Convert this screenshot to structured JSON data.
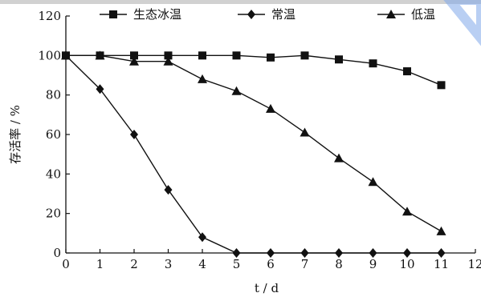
{
  "chart_data": {
    "type": "line",
    "xlabel": "t / d",
    "ylabel": "存活率 / %",
    "xlim": [
      0,
      12
    ],
    "ylim": [
      0,
      120
    ],
    "x_ticks": [
      0,
      1,
      2,
      3,
      4,
      5,
      6,
      7,
      8,
      9,
      10,
      11,
      12
    ],
    "y_ticks": [
      0,
      20,
      40,
      60,
      80,
      100,
      120
    ],
    "grid": false,
    "legend_position": "top",
    "series": [
      {
        "name": "生态冰温",
        "marker": "square",
        "x": [
          0,
          1,
          2,
          3,
          4,
          5,
          6,
          7,
          8,
          9,
          10,
          11
        ],
        "y": [
          100,
          100,
          100,
          100,
          100,
          100,
          99,
          100,
          98,
          96,
          92,
          85
        ]
      },
      {
        "name": "常温",
        "marker": "diamond",
        "x": [
          0,
          1,
          2,
          3,
          4,
          5,
          6,
          7,
          8,
          9,
          10,
          11
        ],
        "y": [
          100,
          83,
          60,
          32,
          8,
          0,
          0,
          0,
          0,
          0,
          0,
          0
        ]
      },
      {
        "name": "低温",
        "marker": "triangle",
        "x": [
          0,
          1,
          2,
          3,
          4,
          5,
          6,
          7,
          8,
          9,
          10,
          11
        ],
        "y": [
          100,
          100,
          97,
          97,
          88,
          82,
          73,
          61,
          48,
          36,
          21,
          11
        ]
      }
    ]
  }
}
